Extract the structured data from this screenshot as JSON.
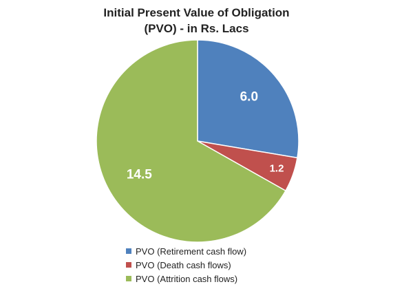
{
  "chart_data": {
    "type": "pie",
    "title_lines": [
      "Initial Present Value of Obligation",
      "(PVO) - in Rs. Lacs"
    ],
    "categories": [
      "PVO (Retirement cash flow)",
      "PVO (Death cash flows)",
      "PVO (Attrition cash flows)"
    ],
    "values": [
      6.0,
      1.2,
      14.5
    ],
    "data_labels": [
      "6.0",
      "1.2",
      "14.5"
    ],
    "colors": [
      "#4f81bd",
      "#c0504d",
      "#9bbb59"
    ],
    "legend_position": "bottom",
    "start_angle": "12 o'clock, clockwise"
  }
}
